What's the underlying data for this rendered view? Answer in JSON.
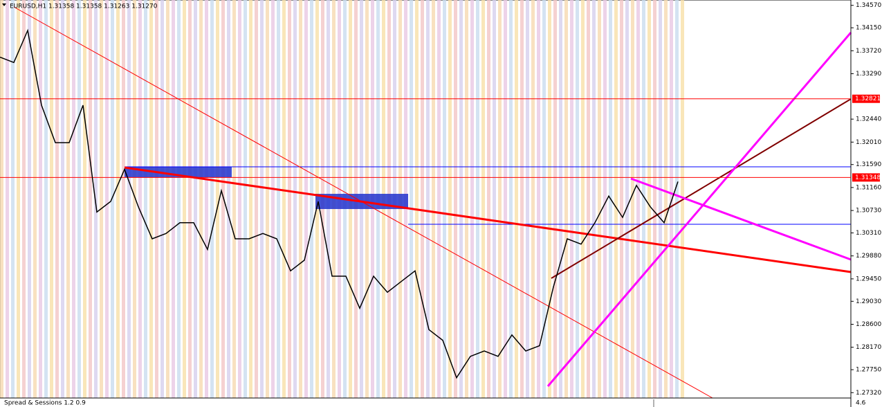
{
  "header": {
    "text": "EURUSD,H1  1.31358 1.31358 1.31263 1.31270"
  },
  "indicator": {
    "name": "Spread & Sessions 1.2 0.9",
    "value": "4.6"
  },
  "chart_data": {
    "type": "line",
    "ylim": [
      1.2722,
      1.3467
    ],
    "yticks": [
      {
        "value": 1.3457,
        "label": "1.34570"
      },
      {
        "value": 1.3415,
        "label": "1.34150"
      },
      {
        "value": 1.3372,
        "label": "1.33720"
      },
      {
        "value": 1.3329,
        "label": "1.33290"
      },
      {
        "value": 1.3244,
        "label": "1.32440"
      },
      {
        "value": 1.3201,
        "label": "1.32010"
      },
      {
        "value": 1.3159,
        "label": "1.31590"
      },
      {
        "value": 1.3116,
        "label": "1.31160"
      },
      {
        "value": 1.3073,
        "label": "1.30730"
      },
      {
        "value": 1.3031,
        "label": "1.30310"
      },
      {
        "value": 1.2988,
        "label": "1.29880"
      },
      {
        "value": 1.2945,
        "label": "1.29450"
      },
      {
        "value": 1.2903,
        "label": "1.29030"
      },
      {
        "value": 1.286,
        "label": "1.28600"
      },
      {
        "value": 1.2817,
        "label": "1.28170"
      },
      {
        "value": 1.2775,
        "label": "1.27750"
      },
      {
        "value": 1.2732,
        "label": "1.27320"
      }
    ],
    "price_lines": [
      {
        "value": 1.32821,
        "label": "1.32821",
        "color": "#ff0000"
      },
      {
        "value": 1.31348,
        "label": "1.31348",
        "color": "#ff0000"
      }
    ],
    "series": [
      {
        "name": "EURUSD",
        "color": "#000000",
        "values": [
          1.336,
          1.335,
          1.341,
          1.327,
          1.32,
          1.32,
          1.327,
          1.307,
          1.309,
          1.315,
          1.308,
          1.302,
          1.303,
          1.305,
          1.305,
          1.3,
          1.311,
          1.302,
          1.302,
          1.303,
          1.302,
          1.296,
          1.298,
          1.309,
          1.295,
          1.295,
          1.289,
          1.295,
          1.292,
          1.294,
          1.296,
          1.285,
          1.283,
          1.276,
          1.28,
          1.281,
          1.28,
          1.284,
          1.281,
          1.282,
          1.293,
          1.302,
          1.301,
          1.305,
          1.31,
          1.306,
          1.312,
          1.308,
          1.305,
          1.3127
        ]
      }
    ]
  }
}
